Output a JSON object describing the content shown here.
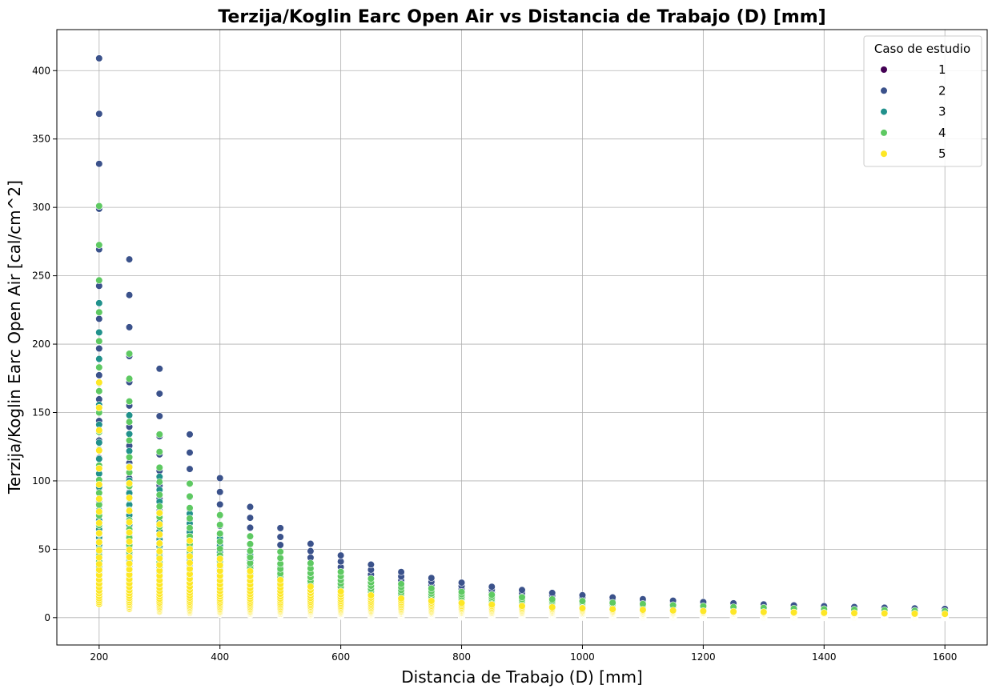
{
  "chart_data": {
    "type": "scatter",
    "title": "Terzija/Koglin Earc Open Air vs Distancia de Trabajo (D) [mm]",
    "xlabel": "Distancia de Trabajo (D) [mm]",
    "ylabel": "Terzija/Koglin Earc Open Air [cal/cm^2]",
    "xlim": [
      130,
      1670
    ],
    "ylim": [
      -20,
      430
    ],
    "xticks": [
      200,
      400,
      600,
      800,
      1000,
      1200,
      1400,
      1600
    ],
    "yticks": [
      0,
      50,
      100,
      150,
      200,
      250,
      300,
      350,
      400
    ],
    "grid": true,
    "legend": {
      "title": "Caso de estudio",
      "placement": "top-right",
      "entries": [
        "1",
        "2",
        "3",
        "4",
        "5"
      ]
    },
    "colors": [
      "#440154",
      "#3b528b",
      "#21918c",
      "#5ec962",
      "#fde725"
    ],
    "x": [
      200,
      250,
      300,
      350,
      400,
      450,
      500,
      550,
      600,
      650,
      700,
      750,
      800,
      850,
      900,
      950,
      1000,
      1050,
      1100,
      1150,
      1200,
      1250,
      1300,
      1350,
      1400,
      1450,
      1500,
      1550,
      1600
    ],
    "series": [
      {
        "name": "1",
        "ranges": [
          [
            12,
            60
          ],
          [
            8,
            38
          ],
          [
            6,
            26
          ],
          [
            4.5,
            19
          ],
          [
            3.5,
            14
          ],
          [
            2.8,
            11
          ],
          [
            2.3,
            9
          ],
          [
            1.9,
            7.5
          ],
          [
            1.6,
            6.3
          ],
          [
            1.4,
            5.4
          ],
          [
            1.2,
            4.6
          ],
          [
            1.05,
            4
          ],
          [
            0.93,
            3.5
          ],
          [
            0.83,
            3.1
          ],
          [
            0.74,
            2.8
          ],
          [
            0.67,
            2.5
          ],
          [
            0.6,
            2.3
          ],
          [
            0.55,
            2.1
          ],
          [
            0.5,
            1.9
          ],
          [
            0.46,
            1.7
          ],
          [
            0.42,
            1.6
          ],
          [
            0.39,
            1.5
          ],
          [
            0.36,
            1.4
          ],
          [
            0.34,
            1.3
          ],
          [
            0.31,
            1.2
          ],
          [
            0.29,
            1.1
          ],
          [
            0.27,
            1.05
          ],
          [
            0.26,
            0.98
          ],
          [
            0.24,
            0.92
          ]
        ]
      },
      {
        "name": "2",
        "ranges": [
          [
            30,
            409
          ],
          [
            19,
            262
          ],
          [
            13,
            182
          ],
          [
            9.8,
            134
          ],
          [
            7.5,
            102
          ],
          [
            6,
            81
          ],
          [
            4.8,
            65.5
          ],
          [
            4,
            54
          ],
          [
            3.4,
            45.5
          ],
          [
            2.9,
            38.8
          ],
          [
            2.5,
            33.4
          ],
          [
            2.2,
            29
          ],
          [
            1.9,
            25.6
          ],
          [
            1.7,
            22.6
          ],
          [
            1.5,
            20.2
          ],
          [
            1.3,
            18.1
          ],
          [
            1.2,
            16.4
          ],
          [
            1.1,
            14.8
          ],
          [
            1.0,
            13.5
          ],
          [
            0.9,
            12.4
          ],
          [
            0.83,
            11.4
          ],
          [
            0.77,
            10.5
          ],
          [
            0.71,
            9.7
          ],
          [
            0.66,
            9
          ],
          [
            0.61,
            8.4
          ],
          [
            0.57,
            7.8
          ],
          [
            0.53,
            7.3
          ],
          [
            0.5,
            6.8
          ],
          [
            0.47,
            6.4
          ]
        ]
      },
      {
        "name": "3",
        "ranges": [
          [
            20,
            230
          ],
          [
            13,
            148
          ],
          [
            9,
            103
          ],
          [
            6.6,
            76
          ],
          [
            5,
            58
          ],
          [
            4,
            46
          ],
          [
            3.2,
            37
          ],
          [
            2.7,
            30.5
          ],
          [
            2.2,
            25.7
          ],
          [
            1.9,
            21.9
          ],
          [
            1.6,
            18.9
          ],
          [
            1.4,
            16.4
          ],
          [
            1.25,
            14.4
          ],
          [
            1.1,
            12.8
          ],
          [
            1.0,
            11.4
          ],
          [
            0.9,
            10.2
          ],
          [
            0.8,
            9.2
          ],
          [
            0.73,
            8.4
          ],
          [
            0.67,
            7.6
          ],
          [
            0.61,
            7
          ],
          [
            0.56,
            6.4
          ],
          [
            0.52,
            5.9
          ],
          [
            0.48,
            5.5
          ],
          [
            0.44,
            5.1
          ],
          [
            0.41,
            4.7
          ],
          [
            0.38,
            4.4
          ],
          [
            0.36,
            4.1
          ],
          [
            0.34,
            3.8
          ],
          [
            0.32,
            3.6
          ]
        ]
      },
      {
        "name": "4",
        "ranges": [
          [
            25,
            301
          ],
          [
            16,
            193
          ],
          [
            11,
            134
          ],
          [
            8,
            98
          ],
          [
            6.2,
            75
          ],
          [
            4.9,
            59.5
          ],
          [
            3.9,
            48.2
          ],
          [
            3.3,
            39.8
          ],
          [
            2.7,
            33.5
          ],
          [
            2.3,
            28.5
          ],
          [
            2,
            24.6
          ],
          [
            1.75,
            21.4
          ],
          [
            1.55,
            18.8
          ],
          [
            1.35,
            16.7
          ],
          [
            1.2,
            14.9
          ],
          [
            1.1,
            13.4
          ],
          [
            1.0,
            12.1
          ],
          [
            0.9,
            10.9
          ],
          [
            0.82,
            10
          ],
          [
            0.75,
            9.1
          ],
          [
            0.69,
            8.4
          ],
          [
            0.64,
            7.7
          ],
          [
            0.59,
            7.2
          ],
          [
            0.55,
            6.6
          ],
          [
            0.51,
            6.2
          ],
          [
            0.47,
            5.8
          ],
          [
            0.44,
            5.4
          ],
          [
            0.41,
            5
          ],
          [
            0.39,
            4.7
          ]
        ]
      },
      {
        "name": "5",
        "ranges": [
          [
            10,
            172
          ],
          [
            6.4,
            110
          ],
          [
            4.4,
            76.5
          ],
          [
            3.3,
            56.2
          ],
          [
            2.5,
            43
          ],
          [
            2,
            34
          ],
          [
            1.6,
            27.5
          ],
          [
            1.3,
            22.7
          ],
          [
            1.1,
            19.1
          ],
          [
            0.95,
            16.3
          ],
          [
            0.82,
            14
          ],
          [
            0.71,
            12.2
          ],
          [
            0.62,
            10.7
          ],
          [
            0.55,
            9.5
          ],
          [
            0.49,
            8.5
          ],
          [
            0.44,
            7.6
          ],
          [
            0.4,
            6.9
          ],
          [
            0.36,
            6.2
          ],
          [
            0.33,
            5.7
          ],
          [
            0.3,
            5.2
          ],
          [
            0.28,
            4.8
          ],
          [
            0.26,
            4.4
          ],
          [
            0.24,
            4.1
          ],
          [
            0.22,
            3.8
          ],
          [
            0.2,
            3.5
          ],
          [
            0.19,
            3.3
          ],
          [
            0.18,
            3.1
          ],
          [
            0.17,
            2.9
          ],
          [
            0.16,
            2.7
          ]
        ]
      }
    ]
  }
}
